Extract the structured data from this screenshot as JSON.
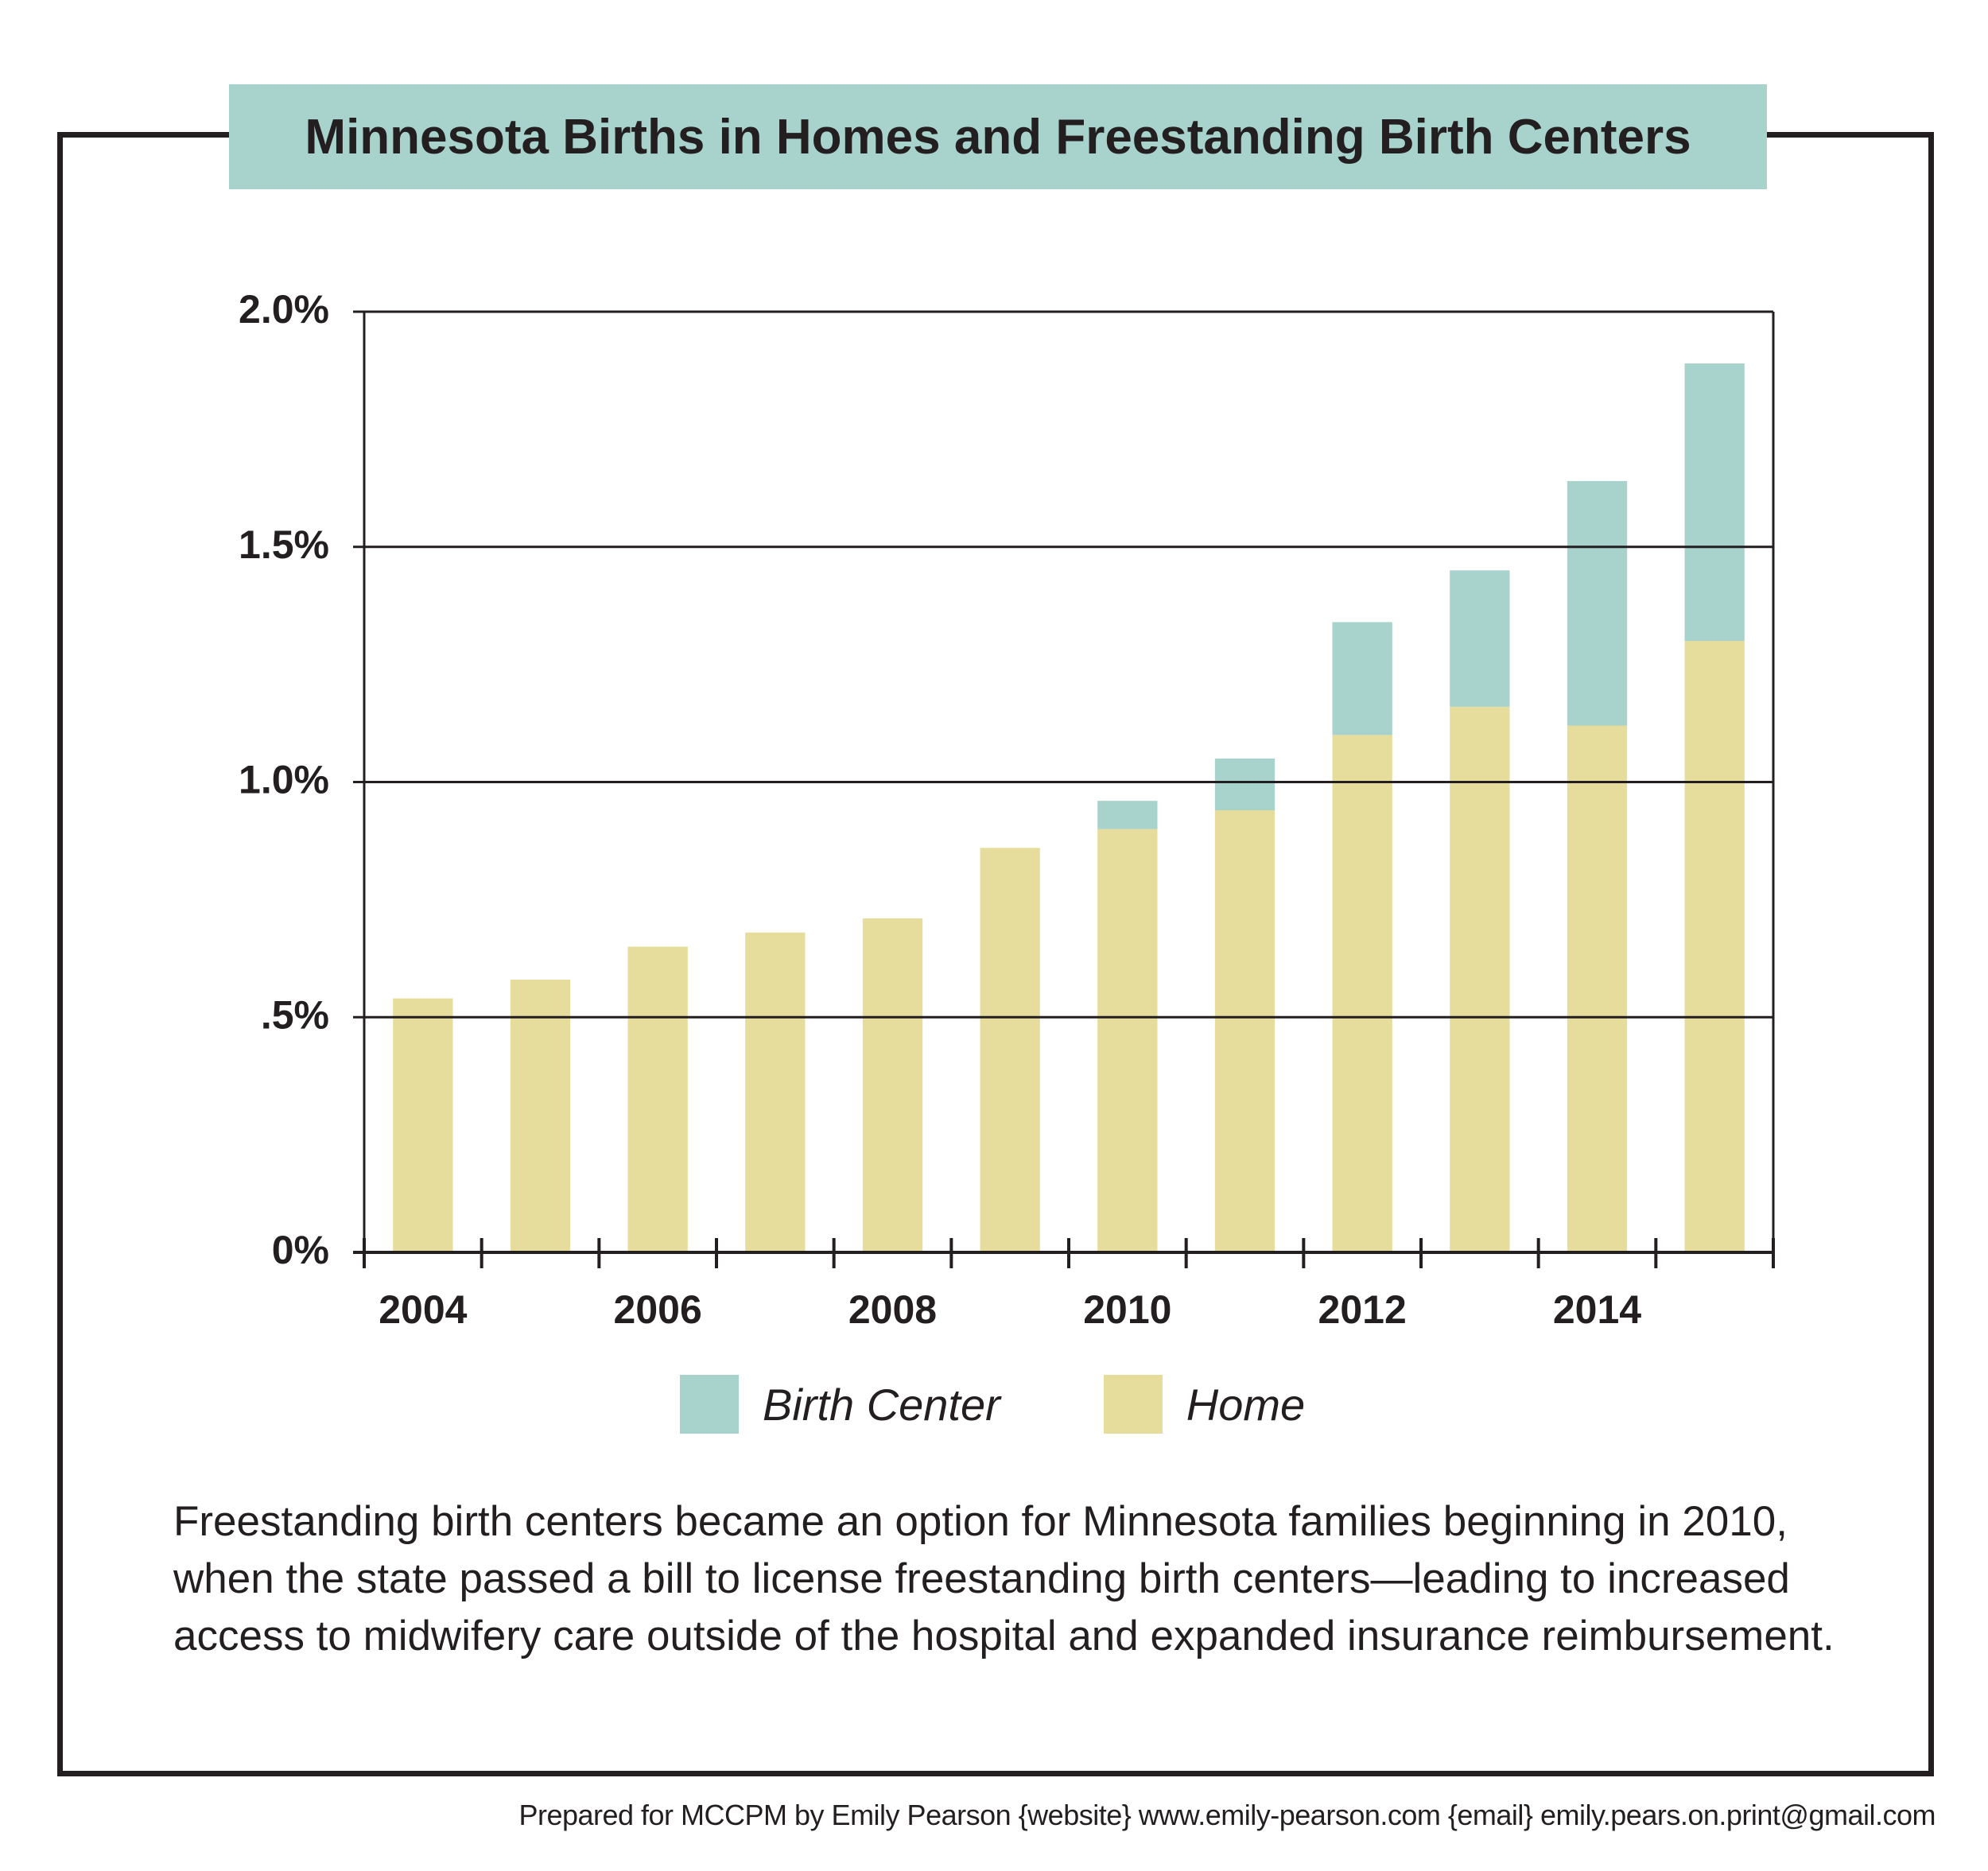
{
  "colors": {
    "birth_center": "#a8d2cc",
    "home": "#e6dd9c",
    "axis": "#231f20",
    "title_bg": "#a8d2cc"
  },
  "chart_data": {
    "type": "bar",
    "stacked": true,
    "title": "Minnesota Births in Homes and Freestanding Birth Centers",
    "xlabel": "",
    "ylabel": "",
    "categories": [
      "2004",
      "2005",
      "2006",
      "2007",
      "2008",
      "2009",
      "2010",
      "2011",
      "2012",
      "2013",
      "2014",
      "2015"
    ],
    "x_tick_labels": [
      "2004",
      "2006",
      "2008",
      "2010",
      "2012",
      "2014"
    ],
    "y_tick_labels": [
      "0%",
      ".5%",
      "1.0%",
      "1.5%",
      "2.0%"
    ],
    "y_ticks": [
      0,
      0.5,
      1.0,
      1.5,
      2.0
    ],
    "ylim": [
      0,
      2.0
    ],
    "grid": "horizontal",
    "legend_position": "bottom",
    "series": [
      {
        "name": "Home",
        "values": [
          0.54,
          0.58,
          0.65,
          0.68,
          0.71,
          0.86,
          0.9,
          0.94,
          1.1,
          1.16,
          1.12,
          1.3
        ]
      },
      {
        "name": "Birth Center",
        "values": [
          0,
          0,
          0,
          0,
          0,
          0,
          0.06,
          0.11,
          0.24,
          0.29,
          0.52,
          0.59
        ]
      }
    ]
  },
  "legend": {
    "birth_center_label": "Birth Center",
    "home_label": "Home"
  },
  "caption": "Freestanding birth centers became an option for Minnesota families beginning in 2010, when the state passed a bill to license freestanding birth centers—leading to increased access to midwifery care outside of the hospital and expanded insurance reimbursement.",
  "credit": "Prepared for MCCPM by Emily Pearson {website} www.emily-pearson.com {email} emily.pears.on.print@gmail.com"
}
